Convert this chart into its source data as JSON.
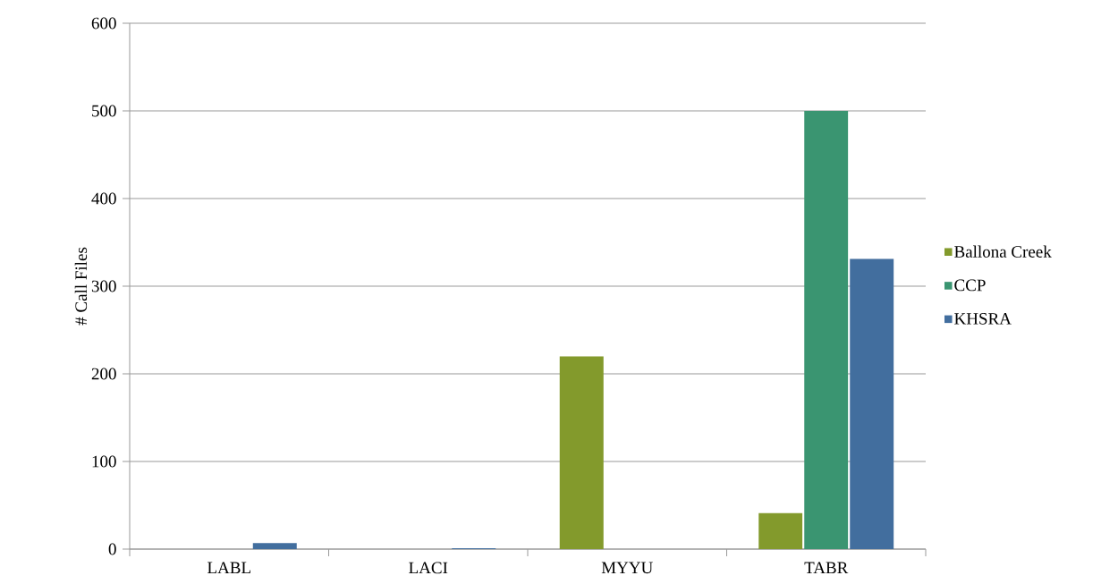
{
  "chart_data": {
    "type": "bar",
    "ylabel": "# Call Files",
    "categories": [
      "LABL",
      "LACI",
      "MYYU",
      "TABR"
    ],
    "series": [
      {
        "name": "Ballona Creek",
        "color": "#839a2c",
        "values": [
          0,
          0,
          220,
          41
        ]
      },
      {
        "name": "CCP",
        "color": "#3a9571",
        "values": [
          0,
          0,
          0,
          500
        ]
      },
      {
        "name": "KHSRA",
        "color": "#426e9e",
        "values": [
          7,
          1,
          0,
          331
        ]
      }
    ],
    "ylim": [
      0,
      600
    ],
    "yticks": [
      0,
      100,
      200,
      300,
      400,
      500,
      600
    ],
    "grid": "y",
    "legend": "right"
  }
}
